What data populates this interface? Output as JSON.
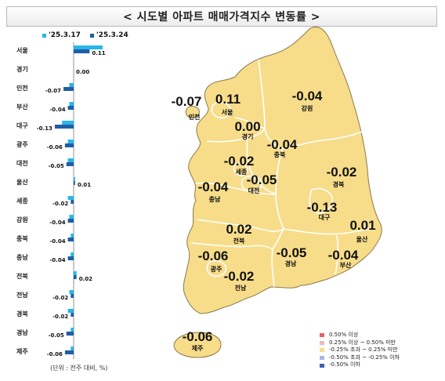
{
  "title": "< 시도별 아파트 매매가격지수 변동률 >",
  "legend": [
    {
      "label": "'25.3.17",
      "color": "#29b6e8"
    },
    {
      "label": "'25.3.24",
      "color": "#1f5ea8"
    }
  ],
  "unit_note": "(단위 : 전주 대비, %)",
  "chart_data": {
    "type": "bar",
    "orientation": "horizontal",
    "categories": [
      "서울",
      "경기",
      "인천",
      "부산",
      "대구",
      "광주",
      "대전",
      "울산",
      "세종",
      "강원",
      "충북",
      "충남",
      "전북",
      "전남",
      "경북",
      "경남",
      "제주"
    ],
    "series": [
      {
        "name": "'25.3.17",
        "values": [
          0.2,
          0.0,
          -0.03,
          -0.03,
          -0.08,
          -0.04,
          -0.04,
          0.01,
          -0.04,
          -0.03,
          -0.02,
          -0.02,
          0.02,
          -0.03,
          -0.04,
          -0.02,
          -0.02
        ]
      },
      {
        "name": "'25.3.24",
        "values": [
          0.11,
          0.0,
          -0.07,
          -0.04,
          -0.13,
          -0.06,
          -0.05,
          0.01,
          -0.02,
          -0.04,
          -0.04,
          -0.04,
          0.02,
          -0.02,
          -0.02,
          -0.05,
          -0.06
        ]
      }
    ],
    "data_labels": [
      "0.11",
      "0.00",
      "-0.07",
      "-0.04",
      "-0.13",
      "-0.06",
      "-0.05",
      "0.01",
      "-0.02",
      "-0.04",
      "-0.04",
      "-0.04",
      "0.02",
      "-0.02",
      "-0.02",
      "-0.05",
      "-0.06"
    ]
  },
  "map": {
    "regions": [
      {
        "name": "서울",
        "value": "0.11"
      },
      {
        "name": "경기",
        "value": "0.00"
      },
      {
        "name": "인천",
        "value": "-0.07"
      },
      {
        "name": "강원",
        "value": "-0.04"
      },
      {
        "name": "충북",
        "value": "-0.04"
      },
      {
        "name": "세종",
        "value": "-0.02"
      },
      {
        "name": "대전",
        "value": "-0.05"
      },
      {
        "name": "충남",
        "value": "-0.04"
      },
      {
        "name": "경북",
        "value": "-0.02"
      },
      {
        "name": "대구",
        "value": "-0.13"
      },
      {
        "name": "울산",
        "value": "0.01"
      },
      {
        "name": "전북",
        "value": "0.02"
      },
      {
        "name": "광주",
        "value": "-0.06"
      },
      {
        "name": "전남",
        "value": "-0.02"
      },
      {
        "name": "경남",
        "value": "-0.05"
      },
      {
        "name": "부산",
        "value": "-0.04"
      },
      {
        "name": "제주",
        "value": "-0.06"
      }
    ],
    "legend": [
      {
        "label": "0.50% 이상",
        "color": "#e06666"
      },
      {
        "label": "0.25% 이상 ~ 0.50% 미만",
        "color": "#f4b6b6"
      },
      {
        "label": "-0.25% 초과 ~ 0.25% 미만",
        "color": "#f7dc8a"
      },
      {
        "label": "-0.50% 초과 ~ -0.25% 이하",
        "color": "#aab8de"
      },
      {
        "label": "-0.50% 이하",
        "color": "#3c63b5"
      }
    ],
    "fill_color": "#f7dc8a",
    "stroke_color": "#8a7a4a"
  }
}
